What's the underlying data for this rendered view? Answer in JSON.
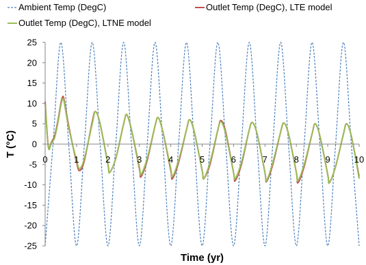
{
  "chart_data": {
    "type": "line",
    "title": "",
    "xlabel": "Time (yr)",
    "ylabel": "T (°C)",
    "xlim": [
      0,
      10
    ],
    "ylim": [
      -25,
      25
    ],
    "x_ticks": [
      0,
      1,
      2,
      3,
      4,
      5,
      6,
      7,
      8,
      9,
      10
    ],
    "y_ticks": [
      25,
      20,
      15,
      10,
      5,
      0,
      -5,
      -10,
      -15,
      -20,
      -25
    ],
    "grid": false,
    "legend_position": "top",
    "series": [
      {
        "name": "Ambient Temp (DegC)",
        "color": "#4A7EBB",
        "style": "dotted",
        "x": [
          0,
          0.25,
          0.5,
          0.75,
          1,
          1.25,
          1.5,
          1.75,
          2,
          2.25,
          2.5,
          2.75,
          3,
          3.25,
          3.5,
          3.75,
          4,
          4.25,
          4.5,
          4.75,
          5,
          5.25,
          5.5,
          5.75,
          6,
          6.25,
          6.5,
          6.75,
          7,
          7.25,
          7.5,
          7.75,
          8,
          8.25,
          8.5,
          8.75,
          9,
          9.25,
          9.5,
          9.75,
          10
        ],
        "y": [
          -25,
          0,
          25,
          0,
          -25,
          0,
          25,
          0,
          -25,
          0,
          25,
          0,
          -25,
          0,
          25,
          0,
          -25,
          0,
          25,
          0,
          -25,
          0,
          25,
          0,
          -25,
          0,
          25,
          0,
          -25,
          0,
          25,
          0,
          -25,
          0,
          25,
          0,
          -25,
          0,
          25,
          0,
          -25
        ]
      },
      {
        "name": "Outlet Temp (DegC), LTE model",
        "color": "#C0504D",
        "style": "solid",
        "x": [
          0,
          0.1,
          0.2,
          0.3,
          0.4,
          0.5,
          0.55,
          0.6,
          0.75,
          1.0,
          1.1,
          1.25,
          1.5,
          1.6,
          1.75,
          2.0,
          2.05,
          2.25,
          2.5,
          2.6,
          2.75,
          3.0,
          3.05,
          3.25,
          3.5,
          3.6,
          3.75,
          4.0,
          4.05,
          4.25,
          4.5,
          4.6,
          4.75,
          5.0,
          5.05,
          5.25,
          5.5,
          5.6,
          5.75,
          6.0,
          6.05,
          6.25,
          6.5,
          6.6,
          6.75,
          7.0,
          7.05,
          7.25,
          7.5,
          7.6,
          7.75,
          8.0,
          8.05,
          8.25,
          8.5,
          8.6,
          8.75,
          9.0,
          9.05,
          9.25,
          9.5,
          9.6,
          9.75,
          10.0
        ],
        "y": [
          10.5,
          -0.5,
          0.5,
          2.0,
          5.5,
          10.0,
          11.5,
          11.0,
          4.5,
          -4.5,
          -6.5,
          -4.0,
          5.5,
          8.0,
          5.0,
          -5.0,
          -7.0,
          -3.5,
          5.0,
          7.2,
          3.5,
          -6.0,
          -8.0,
          -4.0,
          4.5,
          6.5,
          3.0,
          -6.5,
          -8.5,
          -4.5,
          3.5,
          6.0,
          3.0,
          -6.5,
          -8.5,
          -5.0,
          3.5,
          5.8,
          3.0,
          -7.0,
          -9.0,
          -5.0,
          3.5,
          5.3,
          2.5,
          -7.0,
          -9.2,
          -5.0,
          3.0,
          5.2,
          2.5,
          -7.0,
          -9.5,
          -5.5,
          2.5,
          5.0,
          2.0,
          -7.5,
          -9.5,
          -5.5,
          2.5,
          5.0,
          2.0,
          -8.0
        ]
      },
      {
        "name": "Outlet Temp (DegC), LTNE model",
        "color": "#9BBB59",
        "style": "solid",
        "x": [
          0,
          0.1,
          0.2,
          0.3,
          0.4,
          0.5,
          0.55,
          0.6,
          0.75,
          1.0,
          1.1,
          1.25,
          1.5,
          1.6,
          1.75,
          2.0,
          2.05,
          2.25,
          2.5,
          2.6,
          2.75,
          3.0,
          3.05,
          3.25,
          3.5,
          3.6,
          3.75,
          4.0,
          4.05,
          4.25,
          4.5,
          4.6,
          4.75,
          5.0,
          5.05,
          5.25,
          5.5,
          5.6,
          5.75,
          6.0,
          6.05,
          6.25,
          6.5,
          6.6,
          6.75,
          7.0,
          7.05,
          7.25,
          7.5,
          7.6,
          7.75,
          8.0,
          8.05,
          8.25,
          8.5,
          8.6,
          8.75,
          9.0,
          9.05,
          9.25,
          9.5,
          9.6,
          9.75,
          10.0
        ],
        "y": [
          10.0,
          -0.8,
          0.3,
          1.5,
          5.0,
          9.5,
          11.0,
          10.5,
          4.0,
          -4.0,
          -6.0,
          -3.5,
          5.0,
          8.0,
          5.0,
          -5.0,
          -7.0,
          -3.5,
          5.0,
          7.3,
          3.5,
          -5.5,
          -7.5,
          -3.5,
          4.5,
          6.5,
          3.0,
          -6.0,
          -8.0,
          -4.0,
          3.5,
          6.0,
          3.0,
          -6.5,
          -8.5,
          -4.5,
          3.5,
          5.5,
          2.5,
          -7.0,
          -8.5,
          -4.5,
          3.5,
          5.3,
          2.5,
          -7.0,
          -9.0,
          -4.5,
          3.0,
          5.2,
          2.5,
          -7.0,
          -9.0,
          -5.0,
          2.5,
          5.0,
          2.0,
          -7.5,
          -9.5,
          -5.5,
          2.5,
          5.0,
          2.0,
          -8.5
        ]
      }
    ]
  }
}
